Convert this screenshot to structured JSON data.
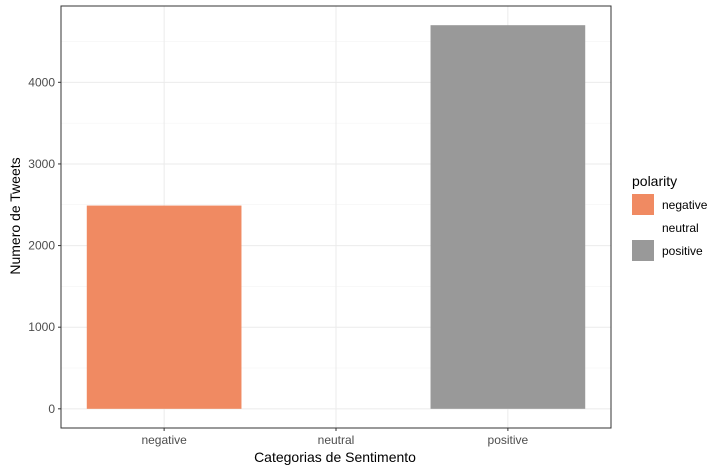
{
  "chart_data": {
    "type": "bar",
    "categories": [
      "negative",
      "neutral",
      "positive"
    ],
    "values": [
      2490,
      0,
      4700
    ],
    "colors": [
      "#f08a62",
      "#ffffff",
      "#999999"
    ],
    "xlabel": "Categorias de Sentimento",
    "ylabel": "Numero de Tweets",
    "yticks": [
      0,
      1000,
      2000,
      3000,
      4000
    ],
    "ylim": [
      -235,
      4935
    ],
    "grid": true,
    "legend": {
      "title": "polarity",
      "position": "right",
      "items": [
        {
          "label": "negative",
          "color": "#f08a62"
        },
        {
          "label": "neutral",
          "color": "#ffffff"
        },
        {
          "label": "positive",
          "color": "#999999"
        }
      ]
    }
  }
}
